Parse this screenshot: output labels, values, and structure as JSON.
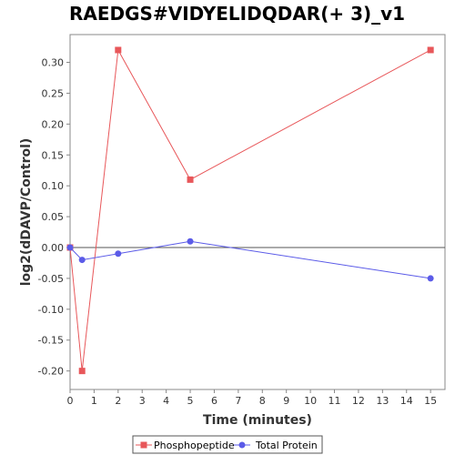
{
  "chart_data": {
    "type": "line",
    "title": "RAEDGS#VIDYELIDQDAR(+ 3)_v1",
    "xlabel": "Time (minutes)",
    "ylabel": "log2(dDAVP/Control)",
    "xlim": [
      0,
      15.6
    ],
    "ylim": [
      -0.23,
      0.345
    ],
    "xticks": [
      0,
      1,
      2,
      3,
      4,
      5,
      6,
      7,
      8,
      9,
      10,
      11,
      12,
      13,
      14,
      15
    ],
    "yticks": [
      -0.2,
      -0.15,
      -0.1,
      -0.05,
      0.0,
      0.05,
      0.1,
      0.15,
      0.2,
      0.25,
      0.3
    ],
    "ytick_labels": [
      "-0.20",
      "-0.15",
      "-0.10",
      "-0.05",
      "0.00",
      "0.05",
      "0.10",
      "0.15",
      "0.20",
      "0.25",
      "0.30"
    ],
    "zero_line": true,
    "grid": false,
    "legend_position": "bottom",
    "series": [
      {
        "name": "Phosphopeptide",
        "color": "#e8575a",
        "marker": "square",
        "x": [
          0,
          0.5,
          2,
          5,
          15
        ],
        "y": [
          0.0,
          -0.2,
          0.32,
          0.11,
          0.32
        ]
      },
      {
        "name": "Total Protein",
        "color": "#5b5be8",
        "marker": "circle",
        "x": [
          0,
          0.5,
          2,
          5,
          15
        ],
        "y": [
          0.0,
          -0.02,
          -0.01,
          0.01,
          -0.05
        ]
      }
    ]
  }
}
